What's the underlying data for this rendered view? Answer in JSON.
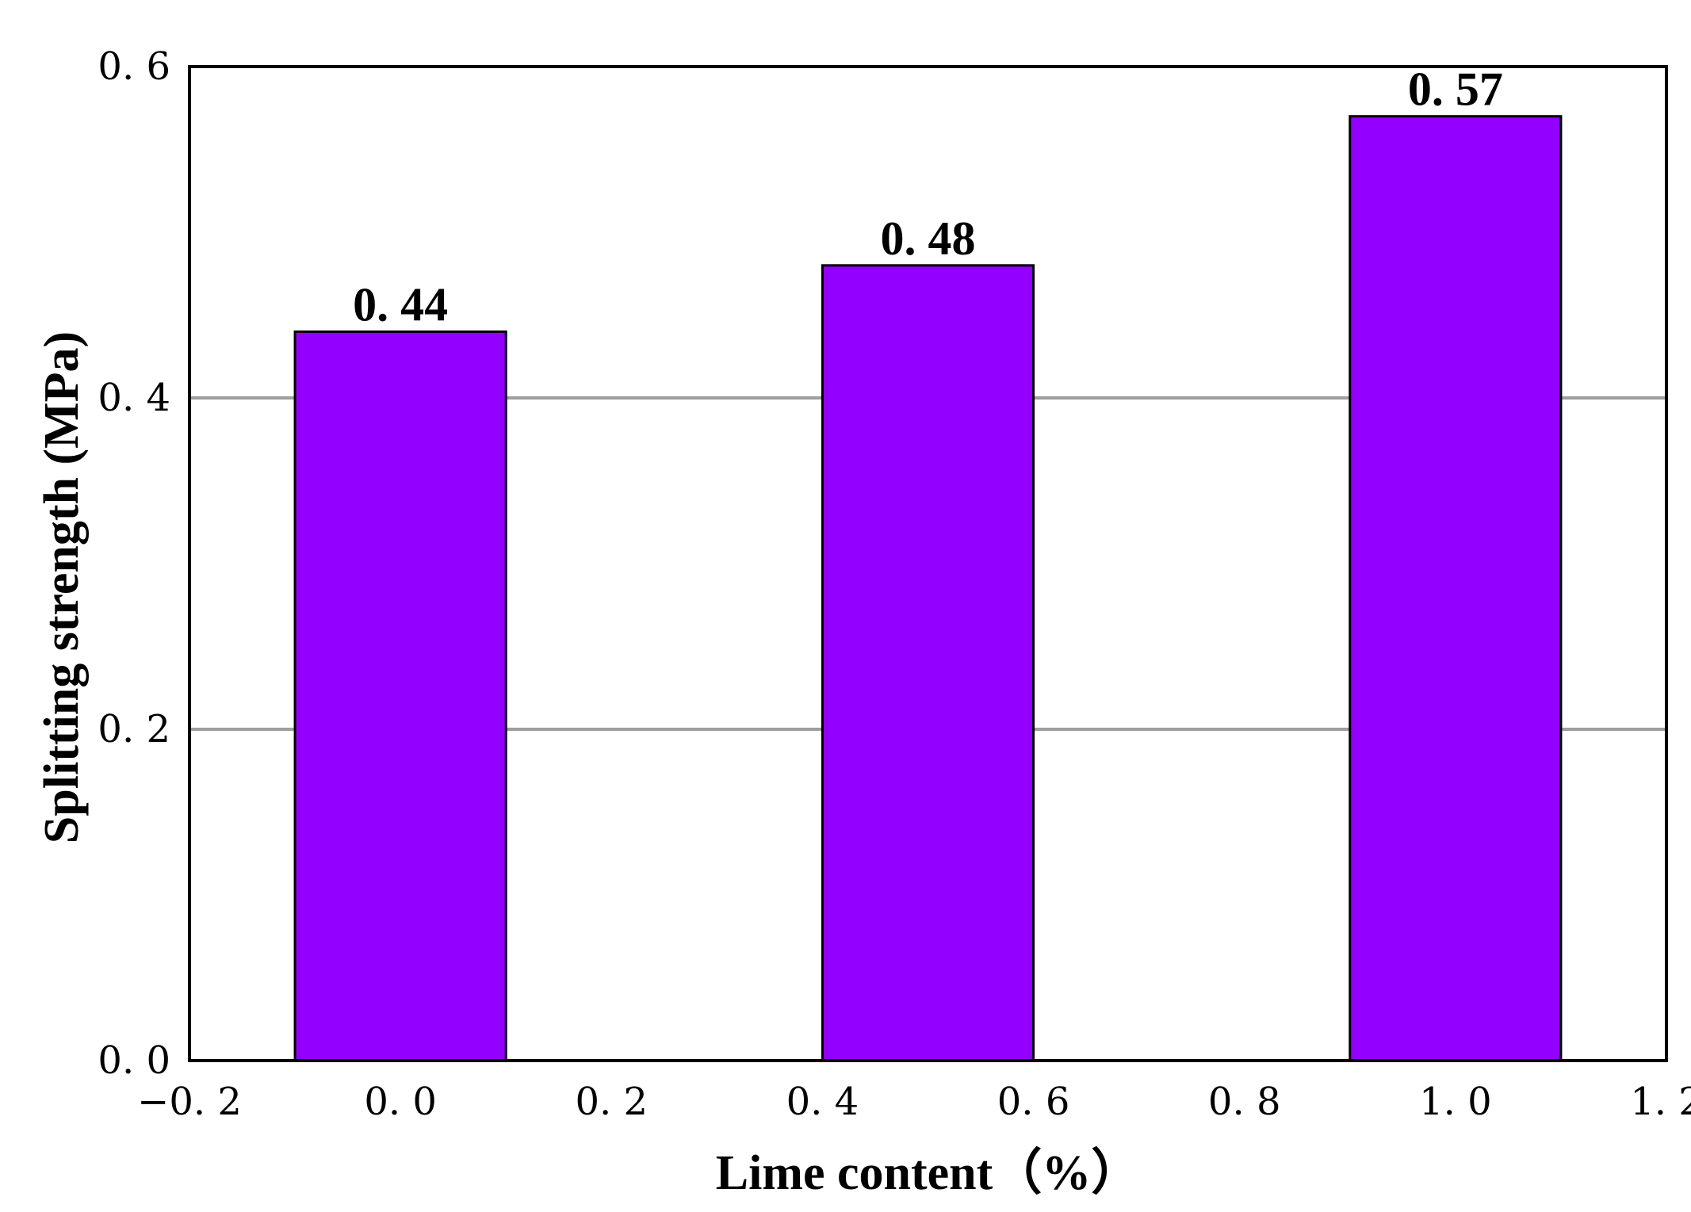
{
  "chart_data": {
    "type": "bar",
    "x": [
      0.0,
      0.5,
      1.0
    ],
    "values": [
      0.44,
      0.48,
      0.57
    ],
    "data_labels": [
      "0. 44",
      "0. 48",
      "0. 57"
    ],
    "bar_width": 0.2,
    "title": "",
    "xlabel": "Lime content（%）",
    "ylabel": "Splitting strength (MPa)",
    "xlim": [
      -0.2,
      1.2
    ],
    "ylim": [
      0.0,
      0.6
    ],
    "x_ticks": [
      -0.2,
      0.0,
      0.2,
      0.4,
      0.6,
      0.8,
      1.0,
      1.2
    ],
    "x_tick_labels": [
      "−0. 2",
      "0. 0",
      "0. 2",
      "0. 4",
      "0. 6",
      "0. 8",
      "1. 0",
      "1. 2"
    ],
    "y_ticks": [
      0.0,
      0.2,
      0.4,
      0.6
    ],
    "y_tick_labels": [
      "0. 0",
      "0. 2",
      "0. 4",
      "0. 6"
    ],
    "grid": "horizontal",
    "legend": "none",
    "bar_color": "#9400ff",
    "grid_color": "#9e9e9e"
  }
}
